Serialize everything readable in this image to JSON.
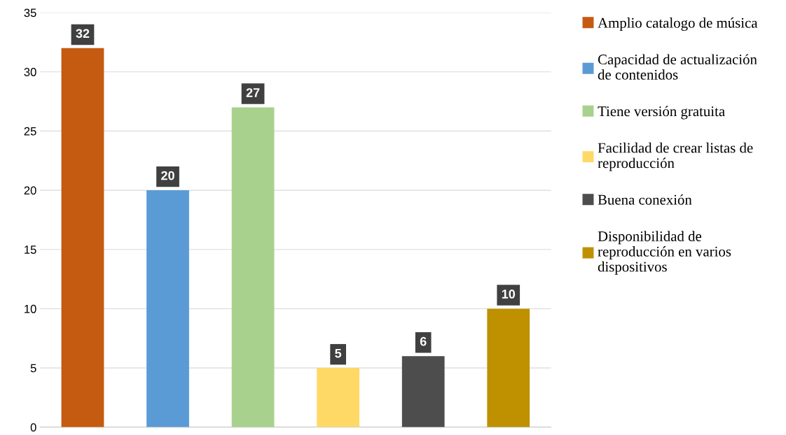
{
  "chart_data": {
    "type": "bar",
    "categories": [
      null,
      null,
      null,
      null,
      null,
      null
    ],
    "series": [
      {
        "name": "Amplio catalogo de música",
        "color": "#c55a11",
        "values": [
          32,
          null,
          null,
          null,
          null,
          null
        ]
      },
      {
        "name": "Capacidad de actualización\nde contenidos",
        "color": "#5b9bd5",
        "values": [
          null,
          20,
          null,
          null,
          null,
          null
        ]
      },
      {
        "name": "Tiene versión gratuita",
        "color": "#a9d18e",
        "values": [
          null,
          null,
          27,
          null,
          null,
          null
        ]
      },
      {
        "name": "Facilidad de crear listas de\nreproducción",
        "color": "#ffd966",
        "values": [
          null,
          null,
          null,
          5,
          null,
          null
        ]
      },
      {
        "name": "Buena conexión",
        "color": "#4d4d4d",
        "values": [
          null,
          null,
          null,
          null,
          6,
          null
        ]
      },
      {
        "name": "Disponibilidad de\nreproducción en varios\ndispositivos",
        "color": "#bf9000",
        "values": [
          null,
          null,
          null,
          null,
          null,
          10
        ]
      }
    ],
    "ylim": [
      0,
      35
    ],
    "yticks": [
      0,
      5,
      10,
      15,
      20,
      25,
      30,
      35
    ],
    "grid": "y",
    "legend": "right",
    "data_labels": true
  }
}
